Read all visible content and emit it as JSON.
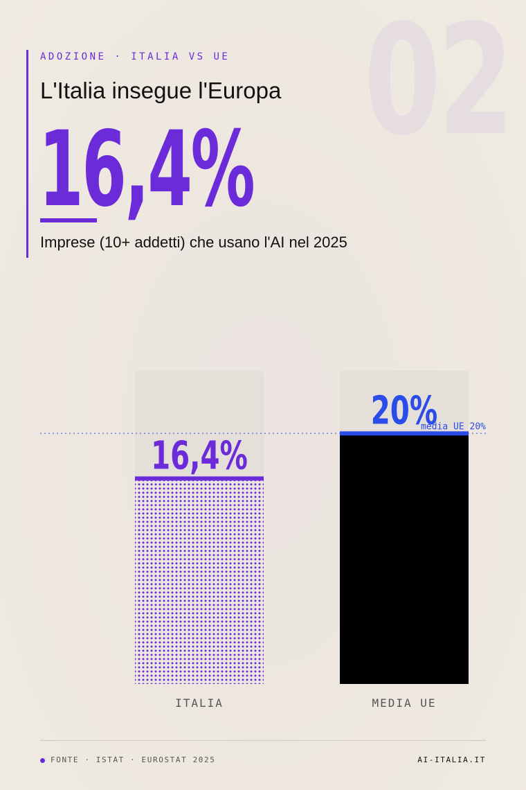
{
  "header": {
    "number": "02",
    "eyebrow": "ADOZIONE · ITALIA VS UE",
    "title": "L'Italia insegue l'Europa",
    "stat": "16,4%",
    "subtitle": "Imprese (10+ addetti) che usano l'AI nel 2025"
  },
  "chart_data": {
    "type": "bar",
    "categories": [
      "ITALIA",
      "MEDIA UE"
    ],
    "values": [
      16.4,
      20
    ],
    "value_labels": [
      "16,4%",
      "20%"
    ],
    "ylim": [
      0,
      25
    ],
    "reference_line": {
      "value": 20,
      "label": "media UE 20%"
    },
    "colors": {
      "italia": "#6c2bd9",
      "ue": "#2b4ce8",
      "ue_fill": "#000000"
    }
  },
  "footer": {
    "source": "FONTE · ISTAT · EUROSTAT 2025",
    "site": "AI-ITALIA.IT"
  }
}
